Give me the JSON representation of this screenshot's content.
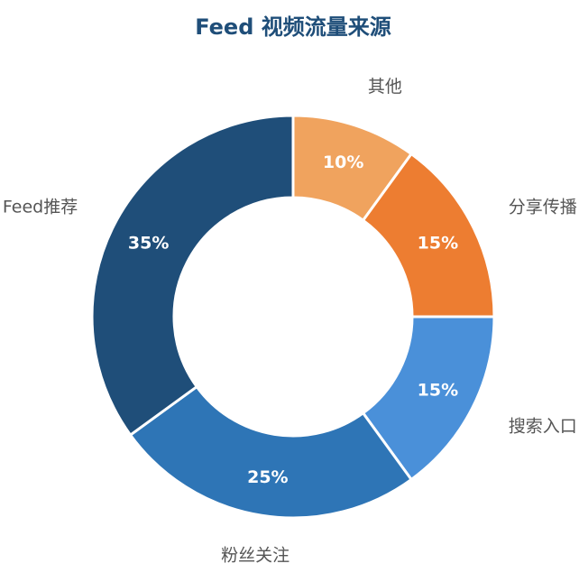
{
  "chart_data": {
    "type": "pie",
    "style": "donut",
    "title": "Feed 视频流量来源",
    "title_color": "#1f4e79",
    "start_angle_deg": 0,
    "direction": "clockwise",
    "slices": [
      {
        "name": "其他",
        "value": 10,
        "value_label": "10%",
        "color": "#f0a35e"
      },
      {
        "name": "分享传播",
        "value": 15,
        "value_label": "15%",
        "color": "#ed7d31"
      },
      {
        "name": "搜索入口",
        "value": 15,
        "value_label": "15%",
        "color": "#4a90d9"
      },
      {
        "name": "粉丝关注",
        "value": 25,
        "value_label": "25%",
        "color": "#2e75b6"
      },
      {
        "name": "Feed推荐",
        "value": 35,
        "value_label": "35%",
        "color": "#1f4e79"
      }
    ]
  }
}
